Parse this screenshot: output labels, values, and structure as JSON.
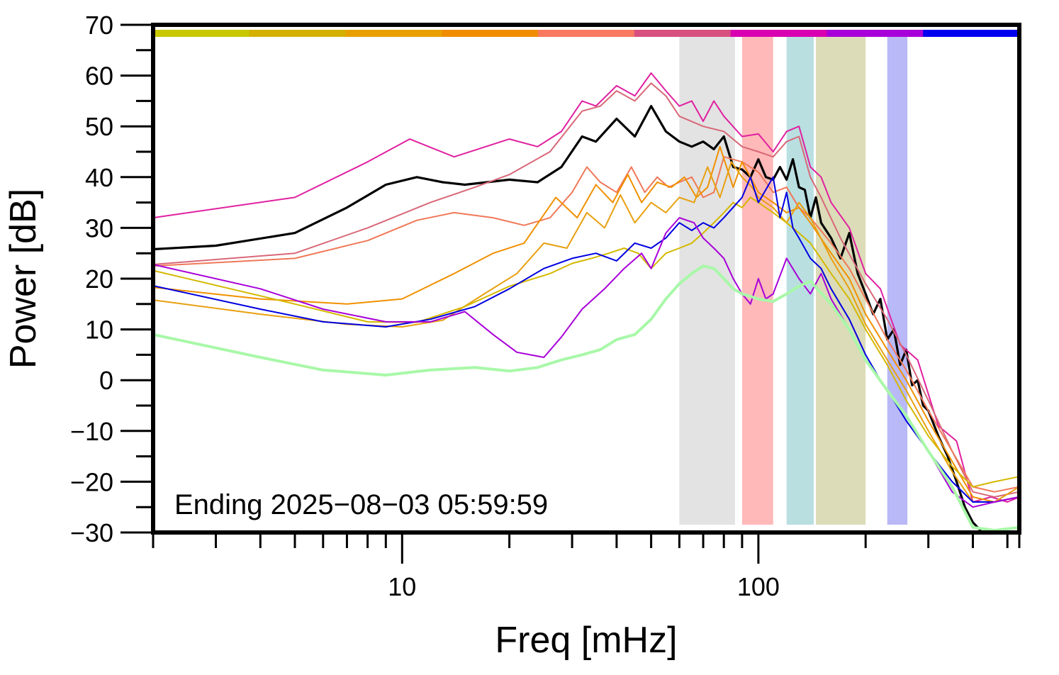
{
  "chart_data": {
    "type": "line",
    "title": "",
    "xlabel": "Freq [mHz]",
    "ylabel": "Power [dB]",
    "x_scale": "log",
    "xlim": [
      2,
      540
    ],
    "ylim": [
      -30,
      70
    ],
    "y_ticks": [
      70,
      60,
      50,
      40,
      30,
      20,
      10,
      0,
      -10,
      -20,
      -30
    ],
    "y_tick_labels": [
      "70",
      "60",
      "50",
      "40",
      "30",
      "20",
      "10",
      "0",
      "−10",
      "−20",
      "−30"
    ],
    "x_ticks": [
      10,
      100
    ],
    "x_tick_labels": [
      "10",
      "100"
    ],
    "grid": false,
    "legend": "none",
    "annotation": "Ending 2025−08−03 05:59:59",
    "color_bar": [
      "#c8c800",
      "#d4b000",
      "#e8a000",
      "#f08c00",
      "#f87860",
      "#d85080",
      "#d800b0",
      "#a800d8",
      "#0000f0"
    ],
    "bands": [
      {
        "from": 60,
        "to": 86,
        "color": "#cccccc"
      },
      {
        "from": 90,
        "to": 110,
        "color": "#ff8080"
      },
      {
        "from": 120,
        "to": 143,
        "color": "#80c4c8"
      },
      {
        "from": 145,
        "to": 200,
        "color": "#c0c080"
      },
      {
        "from": 230,
        "to": 262,
        "color": "#8080f0"
      }
    ],
    "series": [
      {
        "color": "#000000",
        "width": 3.2,
        "x": [
          2,
          3,
          5,
          7,
          9,
          11,
          13,
          15,
          20,
          24,
          28,
          32,
          35,
          40,
          45,
          50,
          55,
          60,
          65,
          70,
          75,
          80,
          85,
          90,
          95,
          100,
          105,
          110,
          115,
          120,
          125,
          130,
          135,
          140,
          145,
          150,
          160,
          170,
          180,
          190,
          200,
          210,
          220,
          230,
          240,
          250,
          260,
          270,
          280,
          290,
          300,
          320,
          340,
          360,
          380,
          400,
          420
        ],
        "y": [
          25.8,
          26.5,
          29,
          34,
          38.5,
          40,
          39,
          38.5,
          39.5,
          39,
          42,
          48,
          47,
          51.5,
          48,
          54,
          49,
          47,
          46,
          47,
          45.5,
          48,
          42,
          41.5,
          40,
          43.5,
          40,
          39.5,
          42,
          39.5,
          43.5,
          38,
          37.5,
          32,
          36,
          31,
          28,
          24,
          29,
          21,
          17,
          13,
          16,
          8,
          10,
          3,
          6,
          -1,
          0,
          -5,
          -6,
          -11,
          -15,
          -20,
          -25,
          -28,
          -33
        ]
      },
      {
        "color": "#e020a0",
        "width": 2,
        "x": [
          2,
          5,
          8,
          10.5,
          14,
          20,
          24,
          28,
          32,
          35,
          40,
          45,
          50,
          55,
          60,
          65,
          70,
          75,
          80,
          90,
          100,
          110,
          120,
          130,
          140,
          150,
          160,
          180,
          200,
          220,
          250,
          280,
          320,
          360,
          400,
          450,
          500,
          540
        ],
        "y": [
          32,
          36,
          43,
          47.5,
          44,
          47.5,
          46,
          49,
          55,
          54,
          58,
          56,
          60.5,
          57,
          54,
          55,
          51,
          55,
          52,
          48,
          48.5,
          45,
          49,
          50,
          42,
          40,
          35,
          30,
          21,
          18,
          7,
          4,
          -9,
          -12,
          -24,
          -23,
          -24,
          -23
        ]
      },
      {
        "color": "#d86878",
        "width": 2,
        "x": [
          2,
          5,
          8,
          12,
          16,
          20,
          26,
          32,
          36,
          40,
          45,
          50,
          55,
          60,
          70,
          80,
          90,
          100,
          110,
          120,
          130,
          140,
          150,
          170,
          200,
          230,
          260,
          300,
          350,
          400,
          460,
          540
        ],
        "y": [
          22.8,
          25,
          30,
          35,
          38,
          40.5,
          45,
          53,
          54,
          57,
          55,
          58.5,
          56,
          52,
          50,
          49,
          46,
          45,
          44,
          47,
          48,
          40,
          36,
          28,
          19,
          12,
          5,
          -4,
          -14,
          -22,
          -23,
          -22
        ]
      },
      {
        "color": "#f07858",
        "width": 2,
        "x": [
          2,
          5,
          8,
          11,
          14,
          18,
          22,
          26,
          30,
          33,
          36,
          40,
          44,
          48,
          52,
          56,
          60,
          65,
          70,
          75,
          80,
          90,
          100,
          110,
          120,
          130,
          140,
          160,
          180,
          200,
          230,
          260,
          300,
          350,
          400,
          460,
          540
        ],
        "y": [
          22.5,
          24,
          27.5,
          31.5,
          33,
          32,
          30.5,
          32,
          37,
          42,
          39,
          37,
          42,
          37,
          40,
          38,
          39,
          40,
          36,
          37,
          44,
          43,
          41,
          37,
          38,
          34,
          32,
          27,
          22,
          16,
          8,
          2,
          -6,
          -14,
          -21,
          -22,
          -21
        ]
      },
      {
        "color": "#f09000",
        "width": 2,
        "x": [
          2,
          4,
          7,
          10,
          14,
          18,
          22,
          27,
          31,
          35,
          39,
          43,
          47,
          52,
          57,
          62,
          67,
          72,
          78,
          85,
          90,
          95,
          100,
          110,
          120,
          130,
          140,
          160,
          180,
          200,
          230,
          260,
          300,
          350,
          400,
          460,
          540
        ],
        "y": [
          18.3,
          16,
          15,
          16,
          21,
          25,
          27,
          36,
          32,
          38.5,
          35,
          40.5,
          35,
          39,
          38,
          40,
          36,
          38,
          46,
          38,
          43,
          40,
          37,
          35,
          33,
          34,
          31,
          25,
          20,
          13,
          6,
          0,
          -8,
          -16,
          -23,
          -24,
          -23
        ]
      },
      {
        "color": "#e8a010",
        "width": 2,
        "x": [
          2,
          4,
          7,
          10,
          13,
          17,
          21,
          25,
          29,
          33,
          37,
          41,
          45,
          50,
          55,
          60,
          66,
          72,
          78,
          84,
          90,
          96,
          100,
          110,
          120,
          130,
          140,
          160,
          180,
          200,
          230,
          260,
          300,
          350,
          400,
          460,
          540
        ],
        "y": [
          15.8,
          13,
          11,
          10.5,
          11.8,
          17,
          21,
          27,
          26,
          33,
          30,
          36.5,
          31,
          35,
          33,
          36,
          35,
          42,
          36,
          43,
          40,
          38,
          36,
          34,
          31,
          35,
          32,
          24,
          18,
          11,
          4,
          -2,
          -10,
          -18,
          -24,
          -24,
          -21
        ]
      },
      {
        "color": "#d4b800",
        "width": 2,
        "x": [
          2,
          5,
          8,
          11,
          15,
          20,
          26,
          30,
          34,
          38,
          42,
          46,
          50,
          55,
          60,
          65,
          70,
          75,
          80,
          85,
          90,
          95,
          100,
          110,
          120,
          130,
          140,
          160,
          180,
          200,
          230,
          260,
          300,
          350,
          400,
          460,
          540
        ],
        "y": [
          21.6,
          15,
          11.5,
          11.4,
          14.5,
          18.5,
          21,
          23,
          24,
          25,
          26,
          25,
          22,
          25,
          26,
          27,
          29,
          31,
          33,
          35,
          34,
          36,
          35,
          33,
          31,
          29,
          27,
          21,
          16,
          10,
          3,
          -4,
          -11,
          -17,
          -21,
          -20,
          -19
        ]
      },
      {
        "color": "#0000e0",
        "width": 2,
        "x": [
          2,
          4,
          6,
          9,
          12,
          16,
          20,
          25,
          30,
          35,
          40,
          45,
          50,
          55,
          60,
          65,
          70,
          75,
          80,
          90,
          95,
          100,
          110,
          115,
          120,
          125,
          130,
          140,
          150,
          160,
          180,
          200,
          220,
          240,
          260,
          300,
          350,
          400,
          460,
          540
        ],
        "y": [
          18.6,
          14,
          11.5,
          10.5,
          12,
          14.5,
          18,
          22,
          24,
          25,
          23.5,
          27,
          26,
          28,
          31,
          29.5,
          31,
          30,
          32,
          36,
          40,
          35,
          40,
          32,
          37,
          30,
          28,
          24,
          22,
          18,
          12,
          5,
          0,
          -4,
          -8,
          -14,
          -20,
          -24,
          -24,
          -23
        ]
      },
      {
        "color": "#a800d8",
        "width": 2,
        "x": [
          2,
          4,
          6,
          9,
          12,
          15,
          18,
          21,
          25,
          28,
          32,
          37,
          42,
          47,
          50,
          55,
          60,
          66,
          70,
          75,
          80,
          85,
          90,
          95,
          100,
          105,
          110,
          120,
          130,
          140,
          150,
          160,
          180,
          200,
          230,
          260,
          300,
          350,
          400,
          460,
          540
        ],
        "y": [
          22.8,
          18,
          14,
          11.5,
          11.5,
          13.5,
          9,
          5.5,
          4.5,
          8.5,
          14,
          18,
          22,
          25,
          22,
          29,
          32,
          31,
          28,
          26,
          24,
          20,
          17,
          15,
          20,
          16,
          17,
          24,
          20,
          17,
          21,
          16,
          10,
          4,
          -2,
          -7,
          -14,
          -22,
          -25,
          -24,
          -23
        ]
      },
      {
        "color": "#a8f8a8",
        "width": 4,
        "x": [
          2,
          4,
          6,
          9,
          12,
          16,
          20,
          24,
          28,
          32,
          36,
          40,
          45,
          50,
          55,
          60,
          65,
          70,
          75,
          80,
          85,
          90,
          95,
          100,
          110,
          120,
          130,
          140,
          160,
          180,
          200,
          230,
          260,
          300,
          350,
          400,
          460,
          540
        ],
        "y": [
          9,
          4.5,
          2,
          1,
          2,
          2.5,
          1.8,
          2.5,
          4,
          5,
          6,
          8,
          9,
          12,
          16,
          19,
          21,
          22.5,
          22,
          20,
          18,
          17,
          16.5,
          16,
          15.5,
          17,
          18.5,
          19.5,
          15,
          10,
          4,
          -2,
          -7,
          -14,
          -21,
          -29,
          -30,
          -29
        ]
      }
    ]
  }
}
